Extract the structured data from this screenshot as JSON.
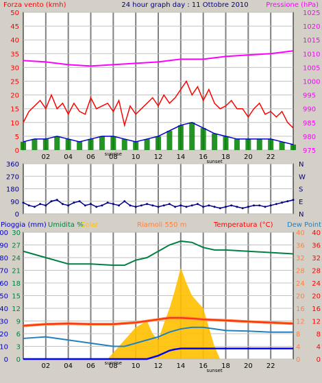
{
  "header": {
    "wind_label": "Forza vento (kmh)",
    "title": "24 hour graph day : 11 Ottobre 2010",
    "pressure_label": "Pressione (hPa)"
  },
  "footer": {
    "pioggia_label": "Pioggia (mm)",
    "umidita_label": "Umidita %",
    "solar_label": "Solar",
    "location_label": "Riamoli 550 m",
    "temp_label": "Temperatura (°C)",
    "dew_label": "Dew Point"
  },
  "colors": {
    "wind": "#ff0000",
    "wind_avg": "#0000c8",
    "gust_bars": "#008000",
    "pressure": "#ff00ff",
    "direction": "#000080",
    "humidity": "#008040",
    "solar": "#ffc000",
    "rain": "#0000ff",
    "temperature": "#ff2000",
    "temp_dew_bg": "#ff8040",
    "dew": "#2080c0",
    "grid": "#808080",
    "plot_bg": "#ffffff"
  },
  "chart_data": [
    {
      "type": "line",
      "id": "wind-pressure",
      "x_ticks": [
        "02",
        "04",
        "06",
        "08",
        "10",
        "12",
        "14",
        "16",
        "18",
        "20",
        "22"
      ],
      "sunrise_label": "sunrise",
      "sunset_label": "sunset",
      "y_left_ticks": [
        "0",
        "5",
        "10",
        "15",
        "20",
        "25",
        "30",
        "35",
        "40",
        "45",
        "50"
      ],
      "y_right_ticks": [
        "975",
        "980",
        "985",
        "990",
        "995",
        "1000",
        "1005",
        "1010",
        "1015",
        "1020",
        "1025"
      ],
      "ylim_left": [
        0,
        50
      ],
      "ylim_right": [
        975,
        1025
      ],
      "series": [
        {
          "role": "wind_gust",
          "x": [
            0,
            0.5,
            1,
            1.5,
            2,
            2.5,
            3,
            3.5,
            4,
            4.5,
            5,
            5.5,
            6,
            6.5,
            7,
            7.5,
            8,
            8.5,
            9,
            9.5,
            10,
            10.5,
            11,
            11.5,
            12,
            12.5,
            13,
            13.5,
            14,
            14.5,
            15,
            15.5,
            16,
            16.5,
            17,
            17.5,
            18,
            18.5,
            19,
            19.5,
            20,
            20.5,
            21,
            21.5,
            22,
            22.5,
            23,
            23.5,
            24
          ],
          "values": [
            10,
            14,
            16,
            18,
            15,
            20,
            15,
            17,
            13,
            17,
            14,
            13,
            19,
            15,
            16,
            17,
            14,
            18,
            9,
            16,
            13,
            15,
            17,
            19,
            16,
            20,
            17,
            19,
            22,
            25,
            20,
            23,
            18,
            22,
            17,
            15,
            16,
            18,
            15,
            15,
            12,
            15,
            17,
            13,
            14,
            12,
            14,
            10,
            8
          ]
        },
        {
          "role": "wind_avg",
          "x": [
            0,
            1,
            2,
            3,
            4,
            5,
            6,
            7,
            8,
            9,
            10,
            11,
            12,
            13,
            14,
            15,
            16,
            17,
            18,
            19,
            20,
            21,
            22,
            23,
            24
          ],
          "values": [
            3,
            4,
            4,
            5,
            4,
            3,
            4,
            5,
            5,
            4,
            3,
            4,
            5,
            7,
            9,
            10,
            8,
            6,
            5,
            4,
            4,
            4,
            4,
            3,
            2
          ]
        },
        {
          "role": "pressure",
          "x": [
            0,
            2,
            4,
            6,
            8,
            10,
            12,
            14,
            16,
            18,
            20,
            22,
            24
          ],
          "values": [
            1007.5,
            1007,
            1006,
            1005.5,
            1006,
            1006.5,
            1007,
            1008,
            1008,
            1009,
            1009.5,
            1010,
            1011
          ]
        }
      ]
    },
    {
      "type": "scatter",
      "id": "wind-direction",
      "y_left_ticks": [
        "0",
        "90",
        "180",
        "270",
        "360"
      ],
      "y_right_ticks": [
        "N",
        "E",
        "S",
        "W",
        "N"
      ],
      "ylim": [
        0,
        360
      ],
      "series": [
        {
          "role": "direction",
          "x": [
            0,
            0.5,
            1,
            1.5,
            2,
            2.5,
            3,
            3.5,
            4,
            4.5,
            5,
            5.5,
            6,
            6.5,
            7,
            7.5,
            8,
            8.5,
            9,
            9.5,
            10,
            10.5,
            11,
            11.5,
            12,
            12.5,
            13,
            13.5,
            14,
            14.5,
            15,
            15.5,
            16,
            16.5,
            17,
            17.5,
            18,
            18.5,
            19,
            19.5,
            20,
            20.5,
            21,
            21.5,
            22,
            22.5,
            23,
            23.5,
            24
          ],
          "values": [
            80,
            60,
            50,
            70,
            60,
            90,
            100,
            70,
            60,
            80,
            90,
            60,
            70,
            50,
            60,
            80,
            70,
            60,
            90,
            60,
            50,
            60,
            70,
            60,
            50,
            60,
            70,
            50,
            60,
            50,
            60,
            70,
            50,
            60,
            50,
            40,
            50,
            60,
            50,
            40,
            50,
            60,
            60,
            50,
            60,
            70,
            80,
            90,
            100
          ]
        }
      ]
    },
    {
      "type": "line",
      "id": "rain-humidity-temp",
      "y_far_left_ticks": [
        "0",
        "10",
        "20",
        "30",
        "40",
        "50",
        "60",
        "70",
        "80",
        "90",
        "100"
      ],
      "y_left_ticks": [
        "0",
        "3",
        "6",
        "9",
        "12",
        "15",
        "18",
        "21",
        "24",
        "27",
        "30"
      ],
      "y_right_ticks": [
        "0",
        "4",
        "8",
        "12",
        "16",
        "20",
        "24",
        "28",
        "32",
        "36",
        "40"
      ],
      "y_far_right_ticks": [
        "0",
        "4",
        "8",
        "12",
        "16",
        "20",
        "24",
        "28",
        "32",
        "36",
        "40"
      ],
      "series": [
        {
          "role": "humidity",
          "x": [
            0,
            2,
            4,
            6,
            8,
            9,
            10,
            11,
            12,
            13,
            14,
            15,
            16,
            17,
            18,
            20,
            22,
            24
          ],
          "values": [
            85,
            80,
            75,
            75,
            74,
            74,
            78,
            80,
            85,
            90,
            93,
            92,
            88,
            86,
            86,
            85,
            84,
            83
          ]
        },
        {
          "role": "temperature",
          "x": [
            0,
            2,
            4,
            6,
            8,
            10,
            12,
            13,
            14,
            15,
            16,
            18,
            20,
            22,
            24
          ],
          "values": [
            10.5,
            11,
            11.2,
            11,
            11,
            11.5,
            12.5,
            13,
            13,
            12.8,
            12.5,
            12.2,
            11.8,
            11.5,
            11.2
          ]
        },
        {
          "role": "dew",
          "x": [
            0,
            2,
            4,
            6,
            8,
            9,
            10,
            12,
            13,
            14,
            15,
            16,
            18,
            20,
            22,
            24
          ],
          "values": [
            6.5,
            7,
            6,
            5,
            4,
            4,
            5,
            7,
            8.5,
            9.5,
            10,
            10,
            9,
            8.8,
            8.5,
            8.5
          ]
        },
        {
          "role": "solar",
          "x": [
            0,
            7.5,
            8,
            9,
            10,
            11,
            11.5,
            12,
            12.5,
            13,
            13.5,
            14,
            14.5,
            15,
            15.5,
            16,
            16.5,
            17,
            17.5,
            24
          ],
          "values": [
            0,
            0,
            5,
            15,
            25,
            30,
            20,
            15,
            28,
            40,
            55,
            72,
            60,
            50,
            45,
            40,
            25,
            10,
            0,
            0
          ]
        },
        {
          "role": "rain",
          "x": [
            0,
            11,
            12,
            12.5,
            13,
            13.5,
            14,
            24
          ],
          "values": [
            0,
            0,
            0.8,
            1.4,
            2,
            2.3,
            2.5,
            2.5
          ]
        }
      ]
    }
  ]
}
